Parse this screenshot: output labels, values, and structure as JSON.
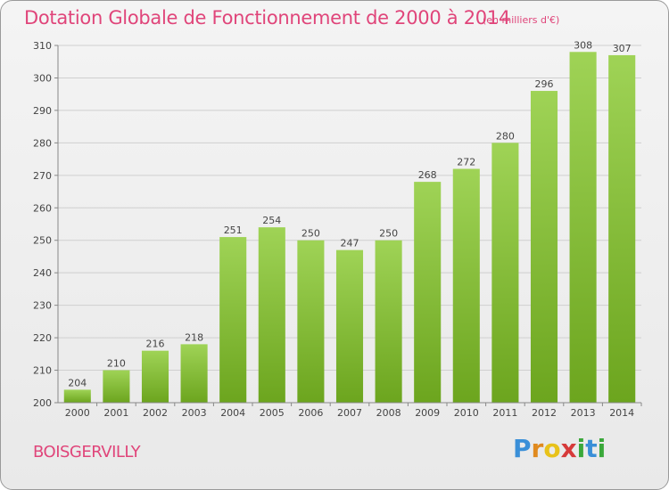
{
  "chart_data": {
    "type": "bar",
    "title": "Dotation Globale de Fonctionnement de 2000 à 2014",
    "subtitle": "(en milliers d'€)",
    "categories": [
      "2000",
      "2001",
      "2002",
      "2003",
      "2004",
      "2005",
      "2006",
      "2007",
      "2008",
      "2009",
      "2010",
      "2011",
      "2012",
      "2013",
      "2014"
    ],
    "values": [
      204,
      210,
      216,
      218,
      251,
      254,
      250,
      247,
      250,
      268,
      272,
      280,
      296,
      308,
      307
    ],
    "ylim": [
      200,
      310
    ],
    "yticks": [
      200,
      210,
      220,
      230,
      240,
      250,
      260,
      270,
      280,
      290,
      300,
      310
    ],
    "grid": true,
    "bar_color_top": "#9fd356",
    "bar_color_bottom": "#6ca51e"
  },
  "place_name": "BOISGERVILLY",
  "brand": {
    "letters": [
      "P",
      "r",
      "o",
      "x",
      "i",
      "t",
      "i"
    ],
    "colors": [
      "#3a8fd8",
      "#e08a1e",
      "#e8c21a",
      "#d63a3a",
      "#3aa83a",
      "#3a8fd8",
      "#3aa83a"
    ]
  }
}
